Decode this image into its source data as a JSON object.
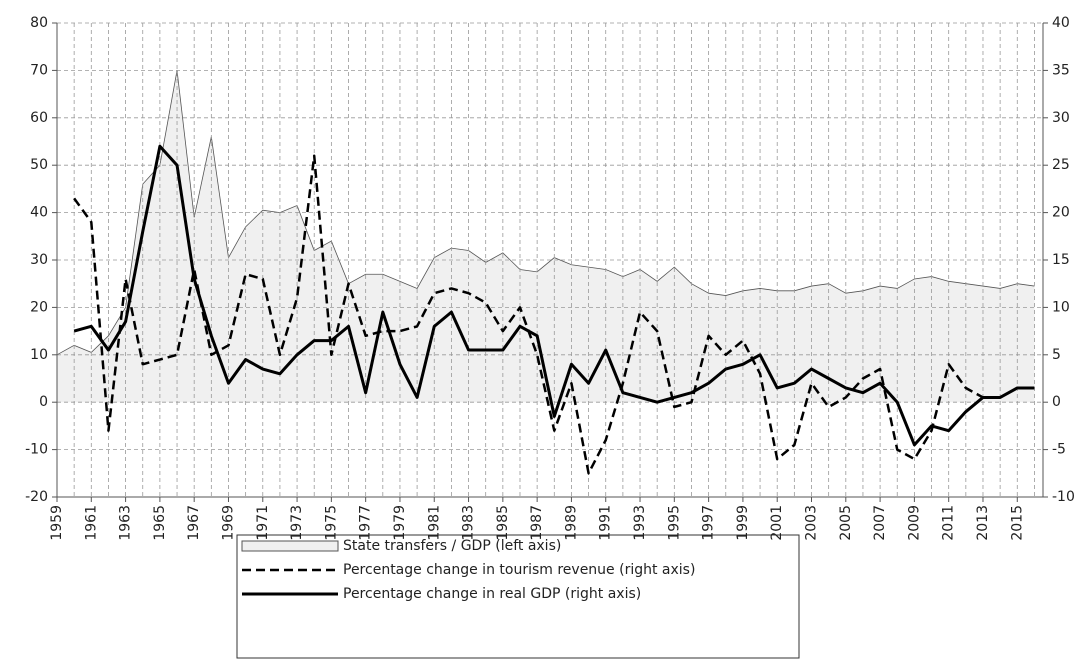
{
  "chart_data": {
    "type": "line",
    "x": [
      1959,
      1960,
      1961,
      1962,
      1963,
      1964,
      1965,
      1966,
      1967,
      1968,
      1969,
      1970,
      1971,
      1972,
      1973,
      1974,
      1975,
      1976,
      1977,
      1978,
      1979,
      1980,
      1981,
      1982,
      1983,
      1984,
      1985,
      1986,
      1987,
      1988,
      1989,
      1990,
      1991,
      1992,
      1993,
      1994,
      1995,
      1996,
      1997,
      1998,
      1999,
      2000,
      2001,
      2002,
      2003,
      2004,
      2005,
      2006,
      2007,
      2008,
      2009,
      2010,
      2011,
      2012,
      2013,
      2014,
      2015,
      2016
    ],
    "xlim": [
      1959,
      2016.5
    ],
    "xticks": [
      1959,
      1961,
      1963,
      1965,
      1967,
      1969,
      1971,
      1973,
      1975,
      1977,
      1979,
      1981,
      1983,
      1985,
      1987,
      1989,
      1991,
      1993,
      1995,
      1997,
      1999,
      2001,
      2003,
      2005,
      2007,
      2009,
      2011,
      2013,
      2015
    ],
    "ylim": [
      -20,
      80
    ],
    "yticks": [
      -20,
      -10,
      0,
      10,
      20,
      30,
      40,
      50,
      60,
      70,
      80
    ],
    "y2lim": [
      -10,
      40
    ],
    "y2ticks": [
      -10,
      -5,
      0,
      5,
      10,
      15,
      20,
      25,
      30,
      35,
      40
    ],
    "grid": true,
    "series": [
      {
        "name": "State transfers / GDP (left axis)",
        "color": "#f0f0f0",
        "style": "area",
        "values": [
          10,
          12,
          10.5,
          14,
          20,
          46,
          50,
          70,
          39,
          56,
          30.5,
          37,
          40.5,
          40,
          41.5,
          32,
          34,
          25,
          27,
          27,
          25.5,
          24,
          30.5,
          32.5,
          32,
          29.5,
          31.5,
          28,
          27.5,
          30.5,
          29,
          28.5,
          28,
          26.5,
          28,
          25.5,
          28.5,
          25,
          23,
          22.5,
          23.5,
          24,
          23.5,
          23.5,
          24.5,
          25,
          23,
          23.5,
          24.5,
          24,
          26,
          26.5,
          25.5,
          25,
          24.5,
          24,
          25,
          24.5
        ]
      },
      {
        "name": "Percentage change in tourism revenue (right axis)",
        "color": "#000000",
        "style": "dashed",
        "axis": "y2",
        "values": [
          null,
          21.5,
          19,
          -3,
          13,
          4,
          4.5,
          5,
          14,
          5,
          6,
          13.5,
          13,
          5,
          11,
          26,
          5,
          12.5,
          7,
          7.5,
          7.5,
          8,
          11.5,
          12,
          11.5,
          10.5,
          7.5,
          10,
          5,
          -3,
          2,
          -7.5,
          -4,
          2,
          9.5,
          7.5,
          -0.5,
          0,
          7,
          5,
          6.5,
          3,
          -6,
          -4.5,
          2,
          -0.5,
          0.5,
          2.5,
          3.5,
          -5,
          -6,
          -3,
          4,
          1.5,
          0.5,
          null,
          null,
          null
        ]
      },
      {
        "name": "Percentage change in real GDP (right axis)",
        "color": "#000000",
        "style": "solid",
        "axis": "y2",
        "values": [
          null,
          7.5,
          8,
          5.5,
          8.5,
          18,
          27,
          25,
          13,
          7,
          2,
          4.5,
          3.5,
          3,
          5,
          6.5,
          6.5,
          8,
          1,
          9.5,
          4,
          0.5,
          8,
          9.5,
          5.5,
          5.5,
          5.5,
          8,
          7,
          -1.5,
          4,
          2,
          5.5,
          1,
          0.5,
          0,
          0.5,
          1,
          2,
          3.5,
          4,
          5,
          1.5,
          2,
          3.5,
          2.5,
          1.5,
          1,
          2,
          0,
          -4.5,
          -2.5,
          -3,
          -1,
          0.5,
          0.5,
          1.5,
          1.5
        ]
      }
    ]
  }
}
